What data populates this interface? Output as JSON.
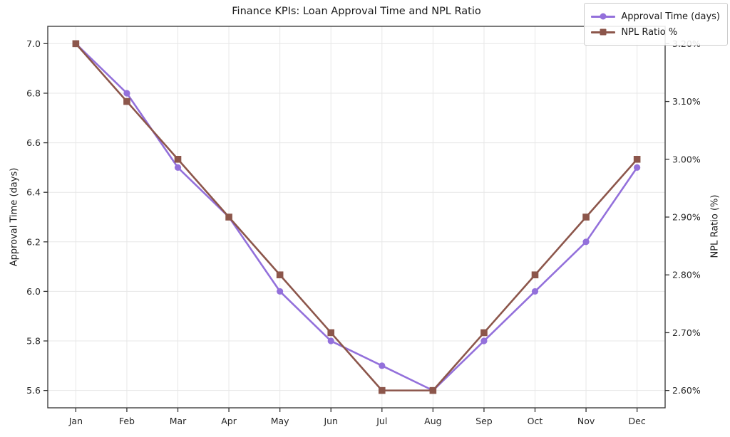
{
  "title": "Finance KPIs: Loan Approval Time and NPL Ratio",
  "legend": {
    "items": [
      {
        "label": "Approval Time (days)",
        "color": "#9370db",
        "marker": "circle"
      },
      {
        "label": "NPL Ratio %",
        "color": "#8c564b",
        "marker": "square"
      }
    ]
  },
  "left_axis": {
    "label": "Approval Time (days)",
    "tick_values": [
      5.6,
      5.8,
      6.0,
      6.2,
      6.4,
      6.6,
      6.8,
      7.0
    ],
    "tick_labels": [
      "5.6",
      "5.8",
      "6.0",
      "6.2",
      "6.4",
      "6.6",
      "6.8",
      "7.0"
    ]
  },
  "right_axis": {
    "label": "NPL Ratio (%)",
    "tick_values": [
      2.6,
      2.7,
      2.8,
      2.9,
      3.0,
      3.1,
      3.2
    ],
    "tick_labels": [
      "2.60%",
      "2.70%",
      "2.80%",
      "2.90%",
      "3.00%",
      "3.10%",
      "3.20%"
    ]
  },
  "x_axis": {
    "tick_labels": [
      "Jan",
      "Feb",
      "Mar",
      "Apr",
      "May",
      "Jun",
      "Jul",
      "Aug",
      "Sep",
      "Oct",
      "Nov",
      "Dec"
    ]
  },
  "colors": {
    "grid": "#e7e7e7",
    "spine": "#333333",
    "tick_text": "#262626"
  },
  "chart_data": {
    "type": "line",
    "title": "Finance KPIs: Loan Approval Time and NPL Ratio",
    "categories": [
      "Jan",
      "Feb",
      "Mar",
      "Apr",
      "May",
      "Jun",
      "Jul",
      "Aug",
      "Sep",
      "Oct",
      "Nov",
      "Dec"
    ],
    "series": [
      {
        "name": "Approval Time (days)",
        "axis": "left",
        "color": "#9370db",
        "marker": "circle",
        "values": [
          7.0,
          6.8,
          6.5,
          6.3,
          6.0,
          5.8,
          5.7,
          5.6,
          5.8,
          6.0,
          6.2,
          6.5
        ]
      },
      {
        "name": "NPL Ratio %",
        "axis": "right",
        "color": "#8c564b",
        "marker": "square",
        "values": [
          3.2,
          3.1,
          3.0,
          2.9,
          2.8,
          2.7,
          2.6,
          2.6,
          2.7,
          2.8,
          2.9,
          3.0
        ]
      }
    ],
    "xlabel": "",
    "ylabel_left": "Approval Time (days)",
    "ylabel_right": "NPL Ratio (%)",
    "ylim_left": [
      5.53,
      7.07
    ],
    "ylim_right": [
      2.57,
      3.23
    ],
    "xlim": [
      -0.55,
      11.55
    ],
    "grid": true,
    "legend_position": "top-right"
  }
}
